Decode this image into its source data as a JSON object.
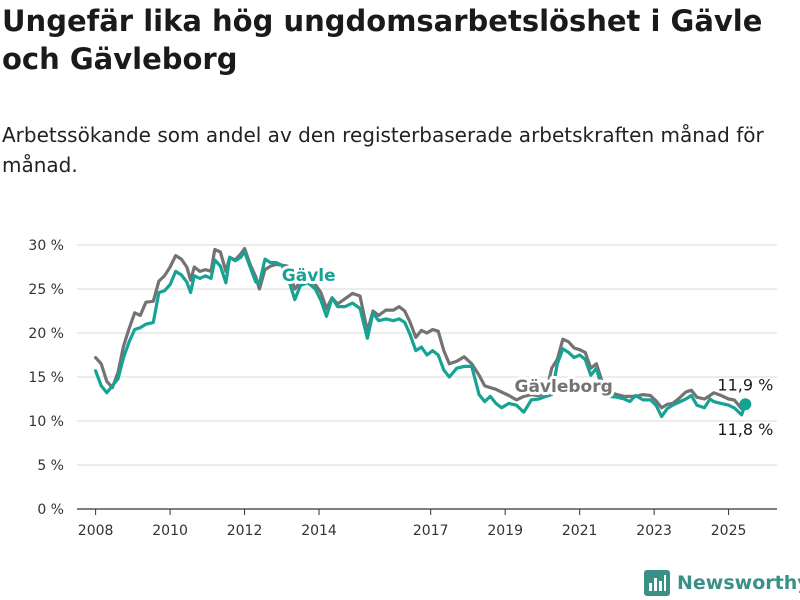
{
  "title": "Ungefär lika hög ungdomsarbetslöshet i Gävle och Gävleborg",
  "subtitle": "Arbetssökande som andel av den registerbaserade arbetskraften månad för månad.",
  "brand": {
    "name": "Newsworthy",
    "icon": "bar-chart-logo-icon"
  },
  "colors": {
    "gavle": "#16a394",
    "gavleborg": "#737373",
    "grid": "#d9d9d9",
    "axis": "#333333"
  },
  "chart_data": {
    "type": "line",
    "title": "Ungefär lika hög ungdomsarbetslöshet i Gävle och Gävleborg",
    "subtitle": "Arbetssökande som andel av den registerbaserade arbetskraften månad för månad.",
    "xlabel": "",
    "ylabel": "",
    "ylim": [
      0,
      30
    ],
    "xlim": [
      2007.5,
      2026.3
    ],
    "grid": true,
    "y_ticks": [
      0,
      5,
      10,
      15,
      20,
      25,
      30
    ],
    "y_tick_labels": [
      "0 %",
      "5 %",
      "10 %",
      "15 %",
      "20 %",
      "25 %",
      "30 %"
    ],
    "x_ticks": [
      2008,
      2010,
      2012,
      2014,
      2017,
      2019,
      2021,
      2023,
      2025
    ],
    "x_tick_labels": [
      "2008",
      "2010",
      "2012",
      "2014",
      "2017",
      "2019",
      "2021",
      "2023",
      "2025"
    ],
    "series": [
      {
        "name": "Gävleborg",
        "color": "#737373",
        "points": [
          [
            2008.0,
            17.2
          ],
          [
            2008.15,
            16.5
          ],
          [
            2008.3,
            14.5
          ],
          [
            2008.45,
            13.8
          ],
          [
            2008.6,
            15.5
          ],
          [
            2008.75,
            18.5
          ],
          [
            2008.9,
            20.5
          ],
          [
            2009.05,
            22.3
          ],
          [
            2009.2,
            22.0
          ],
          [
            2009.35,
            23.5
          ],
          [
            2009.55,
            23.6
          ],
          [
            2009.7,
            25.9
          ],
          [
            2009.85,
            26.5
          ],
          [
            2010.0,
            27.5
          ],
          [
            2010.15,
            28.8
          ],
          [
            2010.3,
            28.4
          ],
          [
            2010.45,
            27.5
          ],
          [
            2010.55,
            26.0
          ],
          [
            2010.65,
            27.5
          ],
          [
            2010.8,
            27.0
          ],
          [
            2010.95,
            27.2
          ],
          [
            2011.1,
            27.0
          ],
          [
            2011.2,
            29.5
          ],
          [
            2011.35,
            29.2
          ],
          [
            2011.5,
            27.0
          ],
          [
            2011.6,
            28.6
          ],
          [
            2011.75,
            28.3
          ],
          [
            2011.9,
            29.0
          ],
          [
            2012.0,
            29.6
          ],
          [
            2012.15,
            27.8
          ],
          [
            2012.3,
            26.4
          ],
          [
            2012.4,
            25.0
          ],
          [
            2012.55,
            27.2
          ],
          [
            2012.7,
            27.6
          ],
          [
            2012.85,
            27.8
          ],
          [
            2013.0,
            27.7
          ],
          [
            2013.15,
            27.6
          ],
          [
            2013.35,
            25.0
          ],
          [
            2013.5,
            25.8
          ],
          [
            2013.7,
            26.2
          ],
          [
            2013.9,
            25.5
          ],
          [
            2014.05,
            24.6
          ],
          [
            2014.2,
            22.8
          ],
          [
            2014.35,
            24.0
          ],
          [
            2014.5,
            23.3
          ],
          [
            2014.7,
            23.9
          ],
          [
            2014.9,
            24.5
          ],
          [
            2015.1,
            24.2
          ],
          [
            2015.3,
            20.2
          ],
          [
            2015.45,
            22.5
          ],
          [
            2015.6,
            22.0
          ],
          [
            2015.8,
            22.6
          ],
          [
            2016.0,
            22.6
          ],
          [
            2016.15,
            23.0
          ],
          [
            2016.3,
            22.5
          ],
          [
            2016.45,
            21.2
          ],
          [
            2016.6,
            19.5
          ],
          [
            2016.75,
            20.3
          ],
          [
            2016.9,
            20.0
          ],
          [
            2017.05,
            20.4
          ],
          [
            2017.2,
            20.2
          ],
          [
            2017.35,
            18.0
          ],
          [
            2017.5,
            16.5
          ],
          [
            2017.7,
            16.8
          ],
          [
            2017.9,
            17.3
          ],
          [
            2018.1,
            16.5
          ],
          [
            2018.3,
            15.2
          ],
          [
            2018.45,
            14.0
          ],
          [
            2018.6,
            13.8
          ],
          [
            2018.75,
            13.6
          ],
          [
            2018.9,
            13.3
          ],
          [
            2019.1,
            12.9
          ],
          [
            2019.3,
            12.4
          ],
          [
            2019.5,
            12.8
          ],
          [
            2019.7,
            13.0
          ],
          [
            2019.9,
            12.9
          ],
          [
            2020.1,
            13.2
          ],
          [
            2020.25,
            16.0
          ],
          [
            2020.4,
            17.0
          ],
          [
            2020.55,
            19.3
          ],
          [
            2020.7,
            19.0
          ],
          [
            2020.85,
            18.3
          ],
          [
            2021.0,
            18.1
          ],
          [
            2021.15,
            17.8
          ],
          [
            2021.3,
            16.0
          ],
          [
            2021.45,
            16.5
          ],
          [
            2021.6,
            14.5
          ],
          [
            2021.8,
            13.3
          ],
          [
            2022.0,
            13.0
          ],
          [
            2022.2,
            12.8
          ],
          [
            2022.35,
            12.8
          ],
          [
            2022.5,
            12.8
          ],
          [
            2022.7,
            13.0
          ],
          [
            2022.9,
            12.9
          ],
          [
            2023.05,
            12.3
          ],
          [
            2023.2,
            11.5
          ],
          [
            2023.35,
            11.9
          ],
          [
            2023.5,
            12.0
          ],
          [
            2023.65,
            12.5
          ],
          [
            2023.85,
            13.3
          ],
          [
            2024.0,
            13.5
          ],
          [
            2024.15,
            12.7
          ],
          [
            2024.35,
            12.5
          ],
          [
            2024.5,
            12.9
          ],
          [
            2024.6,
            13.2
          ],
          [
            2024.8,
            12.9
          ],
          [
            2025.0,
            12.5
          ],
          [
            2025.15,
            12.4
          ],
          [
            2025.35,
            11.4
          ],
          [
            2025.45,
            11.8
          ]
        ]
      },
      {
        "name": "Gävle",
        "color": "#16a394",
        "points": [
          [
            2008.0,
            15.7
          ],
          [
            2008.15,
            14.0
          ],
          [
            2008.3,
            13.2
          ],
          [
            2008.45,
            14.0
          ],
          [
            2008.6,
            14.8
          ],
          [
            2008.75,
            17.2
          ],
          [
            2008.9,
            19.0
          ],
          [
            2009.05,
            20.4
          ],
          [
            2009.2,
            20.6
          ],
          [
            2009.35,
            21.0
          ],
          [
            2009.55,
            21.2
          ],
          [
            2009.7,
            24.6
          ],
          [
            2009.85,
            24.8
          ],
          [
            2010.0,
            25.5
          ],
          [
            2010.15,
            27.0
          ],
          [
            2010.3,
            26.6
          ],
          [
            2010.45,
            25.8
          ],
          [
            2010.55,
            24.6
          ],
          [
            2010.65,
            26.5
          ],
          [
            2010.8,
            26.2
          ],
          [
            2010.95,
            26.5
          ],
          [
            2011.1,
            26.2
          ],
          [
            2011.2,
            28.3
          ],
          [
            2011.35,
            27.6
          ],
          [
            2011.5,
            25.7
          ],
          [
            2011.6,
            28.6
          ],
          [
            2011.75,
            28.2
          ],
          [
            2011.9,
            28.6
          ],
          [
            2012.0,
            29.2
          ],
          [
            2012.15,
            27.5
          ],
          [
            2012.3,
            25.8
          ],
          [
            2012.4,
            25.6
          ],
          [
            2012.55,
            28.4
          ],
          [
            2012.7,
            28.0
          ],
          [
            2012.85,
            28.0
          ],
          [
            2013.0,
            27.7
          ],
          [
            2013.15,
            26.5
          ],
          [
            2013.35,
            23.8
          ],
          [
            2013.5,
            25.4
          ],
          [
            2013.7,
            25.7
          ],
          [
            2013.9,
            25.0
          ],
          [
            2014.05,
            23.7
          ],
          [
            2014.2,
            21.9
          ],
          [
            2014.35,
            24.0
          ],
          [
            2014.5,
            23.0
          ],
          [
            2014.7,
            23.0
          ],
          [
            2014.9,
            23.4
          ],
          [
            2015.1,
            22.8
          ],
          [
            2015.3,
            19.4
          ],
          [
            2015.45,
            22.3
          ],
          [
            2015.6,
            21.4
          ],
          [
            2015.8,
            21.6
          ],
          [
            2016.0,
            21.4
          ],
          [
            2016.15,
            21.6
          ],
          [
            2016.3,
            21.2
          ],
          [
            2016.45,
            19.8
          ],
          [
            2016.6,
            18.0
          ],
          [
            2016.75,
            18.4
          ],
          [
            2016.9,
            17.5
          ],
          [
            2017.05,
            18.0
          ],
          [
            2017.2,
            17.5
          ],
          [
            2017.35,
            15.8
          ],
          [
            2017.5,
            15.0
          ],
          [
            2017.7,
            16.0
          ],
          [
            2017.9,
            16.2
          ],
          [
            2018.1,
            16.2
          ],
          [
            2018.3,
            13.0
          ],
          [
            2018.45,
            12.2
          ],
          [
            2018.6,
            12.8
          ],
          [
            2018.75,
            12.0
          ],
          [
            2018.9,
            11.5
          ],
          [
            2019.1,
            12.0
          ],
          [
            2019.3,
            11.8
          ],
          [
            2019.5,
            11.0
          ],
          [
            2019.7,
            12.4
          ],
          [
            2019.9,
            12.5
          ],
          [
            2020.1,
            12.8
          ],
          [
            2020.25,
            13.0
          ],
          [
            2020.4,
            16.5
          ],
          [
            2020.55,
            18.2
          ],
          [
            2020.7,
            17.8
          ],
          [
            2020.85,
            17.2
          ],
          [
            2021.0,
            17.5
          ],
          [
            2021.15,
            17.0
          ],
          [
            2021.3,
            15.2
          ],
          [
            2021.45,
            16.0
          ],
          [
            2021.6,
            13.7
          ],
          [
            2021.8,
            12.8
          ],
          [
            2022.0,
            12.7
          ],
          [
            2022.2,
            12.5
          ],
          [
            2022.35,
            12.2
          ],
          [
            2022.5,
            12.9
          ],
          [
            2022.7,
            12.4
          ],
          [
            2022.9,
            12.4
          ],
          [
            2023.05,
            11.8
          ],
          [
            2023.2,
            10.5
          ],
          [
            2023.35,
            11.4
          ],
          [
            2023.5,
            11.8
          ],
          [
            2023.65,
            12.1
          ],
          [
            2023.85,
            12.5
          ],
          [
            2024.0,
            12.9
          ],
          [
            2024.15,
            11.8
          ],
          [
            2024.35,
            11.5
          ],
          [
            2024.5,
            12.5
          ],
          [
            2024.6,
            12.2
          ],
          [
            2024.8,
            12.0
          ],
          [
            2025.0,
            11.8
          ],
          [
            2025.15,
            11.5
          ],
          [
            2025.35,
            10.7
          ],
          [
            2025.45,
            11.9
          ]
        ]
      }
    ],
    "annotations": [
      {
        "text": "Gävle",
        "series": "Gävle",
        "x": 2013.0,
        "y": 26.6
      },
      {
        "text": "Gävleborg",
        "series": "Gävleborg",
        "x": 2019.25,
        "y": 14.0
      },
      {
        "text": "11,9 %",
        "series": "Gävle",
        "x": 2025.45,
        "y": 11.9,
        "position": "above"
      },
      {
        "text": "11,8 %",
        "series": "Gävleborg",
        "x": 2025.45,
        "y": 11.8,
        "position": "below"
      }
    ]
  }
}
